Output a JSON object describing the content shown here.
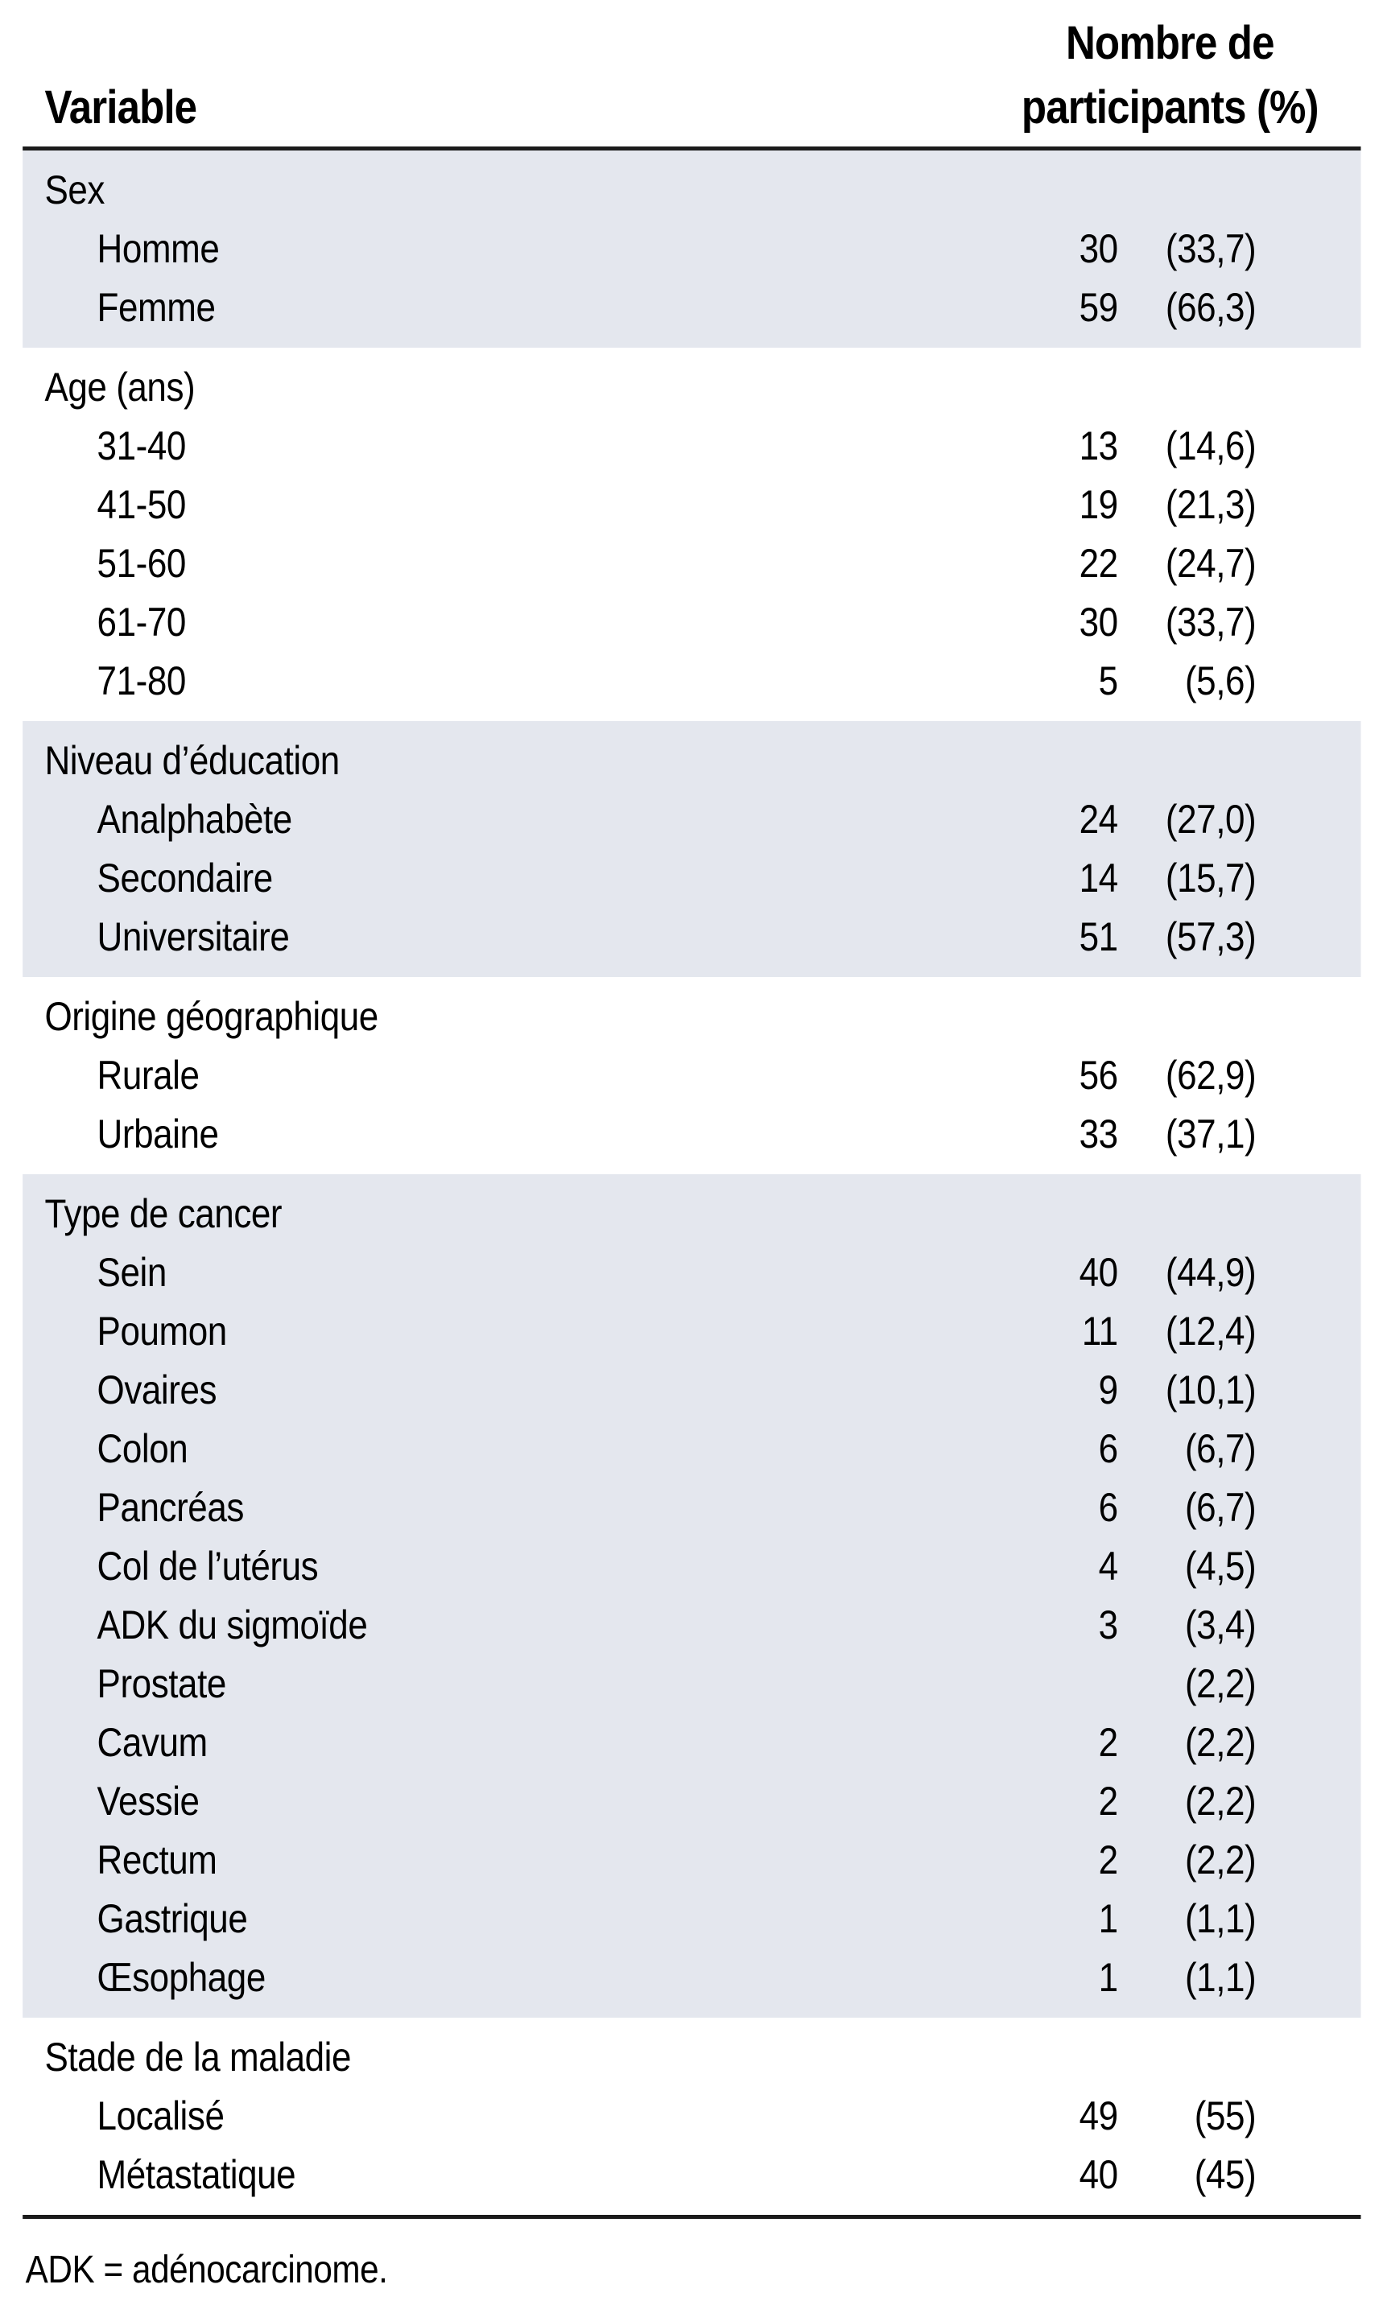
{
  "header": {
    "variable": "Variable",
    "participants_line1": "Nombre de",
    "participants_line2": "participants (%)"
  },
  "sections": [
    {
      "label": "Sex",
      "shaded": true,
      "rows": [
        {
          "label": "Homme",
          "count": "30",
          "percent": "(33,7)"
        },
        {
          "label": "Femme",
          "count": "59",
          "percent": "(66,3)"
        }
      ]
    },
    {
      "label": "Age (ans)",
      "shaded": false,
      "rows": [
        {
          "label": "31-40",
          "count": "13",
          "percent": "(14,6)"
        },
        {
          "label": "41-50",
          "count": "19",
          "percent": "(21,3)"
        },
        {
          "label": "51-60",
          "count": "22",
          "percent": "(24,7)"
        },
        {
          "label": "61-70",
          "count": "30",
          "percent": "(33,7)"
        },
        {
          "label": "71-80",
          "count": "5",
          "percent": "(5,6)"
        }
      ]
    },
    {
      "label": "Niveau d’éducation",
      "shaded": true,
      "rows": [
        {
          "label": "Analphabète",
          "count": "24",
          "percent": "(27,0)"
        },
        {
          "label": "Secondaire",
          "count": "14",
          "percent": "(15,7)"
        },
        {
          "label": "Universitaire",
          "count": "51",
          "percent": "(57,3)"
        }
      ]
    },
    {
      "label": "Origine géographique",
      "shaded": false,
      "rows": [
        {
          "label": "Rurale",
          "count": "56",
          "percent": "(62,9)"
        },
        {
          "label": "Urbaine",
          "count": "33",
          "percent": "(37,1)"
        }
      ]
    },
    {
      "label": "Type de cancer",
      "shaded": true,
      "rows": [
        {
          "label": "Sein",
          "count": "40",
          "percent": "(44,9)"
        },
        {
          "label": "Poumon",
          "count": "11",
          "percent": "(12,4)"
        },
        {
          "label": "Ovaires",
          "count": "9",
          "percent": "(10,1)"
        },
        {
          "label": "Colon",
          "count": "6",
          "percent": "(6,7)"
        },
        {
          "label": "Pancréas",
          "count": "6",
          "percent": "(6,7)"
        },
        {
          "label": "Col de l’utérus",
          "count": "4",
          "percent": "(4,5)"
        },
        {
          "label": "ADK du sigmoïde",
          "count": "3",
          "percent": "(3,4)"
        },
        {
          "label": "Prostate",
          "count": "",
          "percent": "(2,2)"
        },
        {
          "label": "Cavum",
          "count": "2",
          "percent": "(2,2)"
        },
        {
          "label": "Vessie",
          "count": "2",
          "percent": "(2,2)"
        },
        {
          "label": "Rectum",
          "count": "2",
          "percent": "(2,2)"
        },
        {
          "label": "Gastrique",
          "count": "1",
          "percent": "(1,1)"
        },
        {
          "label": "Œsophage",
          "count": "1",
          "percent": "(1,1)"
        }
      ]
    },
    {
      "label": "Stade de la maladie",
      "shaded": false,
      "rows": [
        {
          "label": "Localisé",
          "count": "49",
          "percent": "(55)"
        },
        {
          "label": "Métastatique",
          "count": "40",
          "percent": "(45)"
        }
      ]
    }
  ],
  "footnote": "ADK = adénocarcinome.",
  "colors": {
    "band": "#e4e7ee",
    "rule": "#1b1b1b",
    "text": "#000000"
  }
}
